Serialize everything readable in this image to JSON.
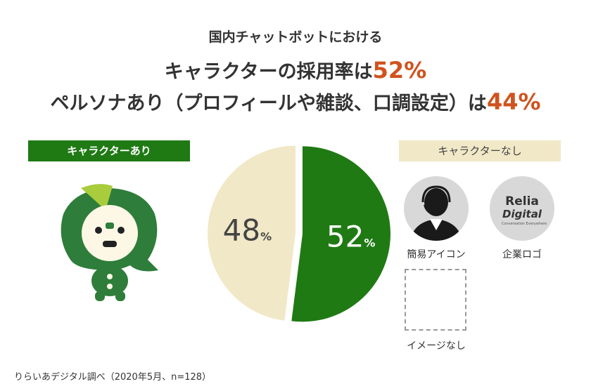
{
  "headline": {
    "line1": "国内チャットボットにおける",
    "line2_text": "キャラクターの採用率は",
    "line2_value": "52%",
    "line3_text": "ペルソナあり（プロフィールや雑談、口調設定）は",
    "line3_value": "44%"
  },
  "labels": {
    "with_character": "キャラクターあり",
    "without_character": "キャラクターなし"
  },
  "examples": {
    "simple_icon": "簡易アイコン",
    "company_logo": "企業ロゴ",
    "no_image": "イメージなし",
    "logo_text_1": "Relia",
    "logo_text_2": "Digital",
    "logo_text_3": "Conversation Everywhere"
  },
  "source": "りらいあデジタル調べ（2020年5月、n=128）",
  "colors": {
    "with": "#1f7a14",
    "without": "#f1e8c7",
    "accent": "#d0521e"
  },
  "chart_data": {
    "type": "pie",
    "slices": [
      {
        "label": "キャラクターあり",
        "value": 52,
        "display": "52",
        "unit": "%",
        "color": "#1f7a14"
      },
      {
        "label": "キャラクターなし",
        "value": 48,
        "display": "48",
        "unit": "%",
        "color": "#f1e8c7"
      }
    ]
  }
}
